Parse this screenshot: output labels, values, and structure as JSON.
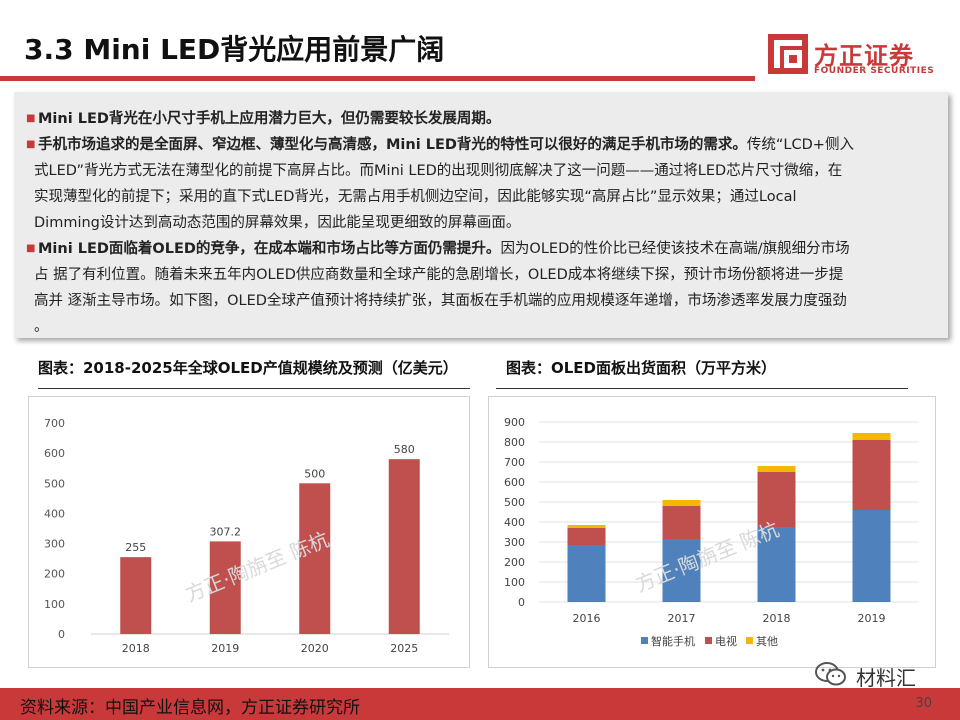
{
  "header": {
    "title": "3.3 Mini LED背光应用前景广阔",
    "logo_cn": "方正证券",
    "logo_en": "FOUNDER SECURITIES"
  },
  "bullets": [
    {
      "lines": [
        [
          {
            "t": "Mini LED背光在小尺寸手机上应用潜力巨大，但仍需要较长发展周期。",
            "b": true
          }
        ]
      ]
    },
    {
      "lines": [
        [
          {
            "t": "手机市场追求的是全面屏、窄边框、薄型化与高清感，Mini LED背光的特性可以很好的满足手机市场的需求。",
            "b": true
          },
          {
            "t": "传统“LCD+侧入",
            "b": false
          }
        ],
        [
          {
            "t": "式LED”背光方式无法在薄型化的前提下高屏占比。而Mini  LED的出现则彻底解决了这一问题——通过将LED芯片尺寸微缩，在",
            "b": false
          }
        ],
        [
          {
            "t": "实现薄型化的前提下；采用的直下式LED背光，无需占用手机侧边空间，因此能够实现“高屏占比”显示效果；通过Local",
            "b": false
          }
        ],
        [
          {
            "t": "Dimming设计达到高动态范围的屏幕效果，因此能呈现更细致的屏幕画面。",
            "b": false
          }
        ]
      ]
    },
    {
      "lines": [
        [
          {
            "t": "Mini   LED面临着OLED的竞争，在成本端和市场占比等方面仍需提升。",
            "b": true
          },
          {
            "t": "因为OLED的性价比已经使该技术在高端/旗舰细分市场",
            "b": false
          }
        ],
        [
          {
            "t": "占  据了有利位置。随着未来五年内OLED供应商数量和全球产能的急剧增长，OLED成本将继续下探，预计市场份额将进一步提",
            "b": false
          }
        ],
        [
          {
            "t": "高并  逐渐主导市场。如下图，OLED全球产值预计将持续扩张，其面板在手机端的应用规模逐年递增，市场渗透率发展力度强劲",
            "b": false
          }
        ],
        [
          {
            "t": "。",
            "b": false
          }
        ]
      ]
    }
  ],
  "watermark": "方正·陶旃至 陈杭",
  "chart_data": [
    {
      "type": "bar",
      "title": "图表：2018-2025年全球OLED产值规模统及预测（亿美元）",
      "categories": [
        "2018",
        "2019",
        "2020",
        "2025"
      ],
      "values": [
        255,
        307.2,
        500,
        580
      ],
      "value_labels": [
        "255",
        "307.2",
        "500",
        "580"
      ],
      "ylim": [
        0,
        700
      ],
      "yticks": [
        "0",
        "100",
        "200",
        "300",
        "400",
        "500",
        "600",
        "700"
      ],
      "color": "#c0504d"
    },
    {
      "type": "bar",
      "stacked": true,
      "title": "图表：OLED面板出货面积（万平方米）",
      "categories": [
        "2016",
        "2017",
        "2018",
        "2019"
      ],
      "series": [
        {
          "name": "智能手机",
          "values": [
            285,
            315,
            375,
            460
          ],
          "color": "#4f81bd"
        },
        {
          "name": "电视",
          "values": [
            85,
            165,
            275,
            350
          ],
          "color": "#c0504d"
        },
        {
          "name": "其他",
          "values": [
            15,
            30,
            30,
            35
          ],
          "color": "#f5b800"
        }
      ],
      "ylim": [
        0,
        900
      ],
      "yticks": [
        "0",
        "100",
        "200",
        "300",
        "400",
        "500",
        "600",
        "700",
        "800",
        "900"
      ]
    }
  ],
  "footer": {
    "source": "资料来源：中国产业信息网，方正证券研究所",
    "page": "30",
    "wechat_name": "材料汇"
  }
}
